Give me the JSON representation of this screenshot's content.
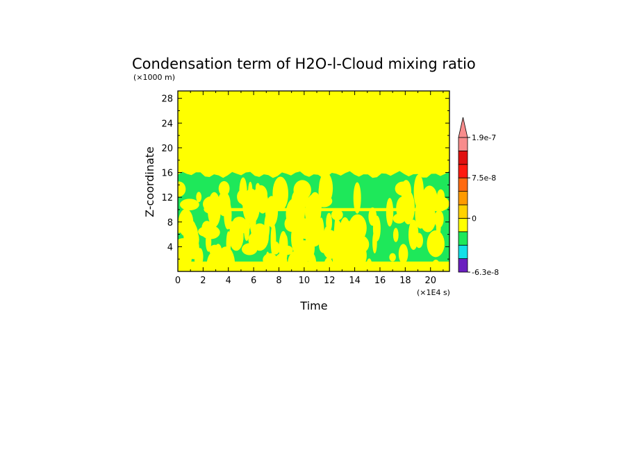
{
  "chart_data": {
    "type": "heatmap",
    "title": "Condensation term of H2O-l-Cloud mixing ratio",
    "y_unit_label": "(×1000 m)",
    "x_unit_label": "(×1E4 s)",
    "xlabel": "Time",
    "ylabel": "Z-coordinate",
    "xlim": [
      0,
      21.5
    ],
    "ylim": [
      0,
      29.2
    ],
    "x_ticks": [
      0,
      2,
      4,
      6,
      8,
      10,
      12,
      14,
      16,
      18,
      20
    ],
    "y_ticks": [
      4,
      8,
      12,
      16,
      20,
      24,
      28
    ],
    "grid": false,
    "colorbar": {
      "placement": "right",
      "levels": [
        {
          "color": "#6a1fbf"
        },
        {
          "color": "#13e0e8"
        },
        {
          "color": "#1ee85a"
        },
        {
          "color": "#ffff00"
        },
        {
          "color": "#ffd200"
        },
        {
          "color": "#ff9a00"
        },
        {
          "color": "#ff6a10"
        },
        {
          "color": "#ff1a10"
        },
        {
          "color": "#e01010"
        },
        {
          "color": "#f88c8c"
        }
      ],
      "labels": [
        {
          "text": "1.9e-7",
          "level": 9
        },
        {
          "text": "7.5e-8",
          "level": 6
        },
        {
          "text": "0",
          "level": 3
        },
        {
          "text": "-6.3e-8",
          "level": 0
        }
      ]
    },
    "regions": {
      "background_color": "#ffff00",
      "band_color": "#1ee85a",
      "band_bottom_z": 0.5,
      "band_top_z": 15.8,
      "clear_line_z": 10.0
    }
  }
}
